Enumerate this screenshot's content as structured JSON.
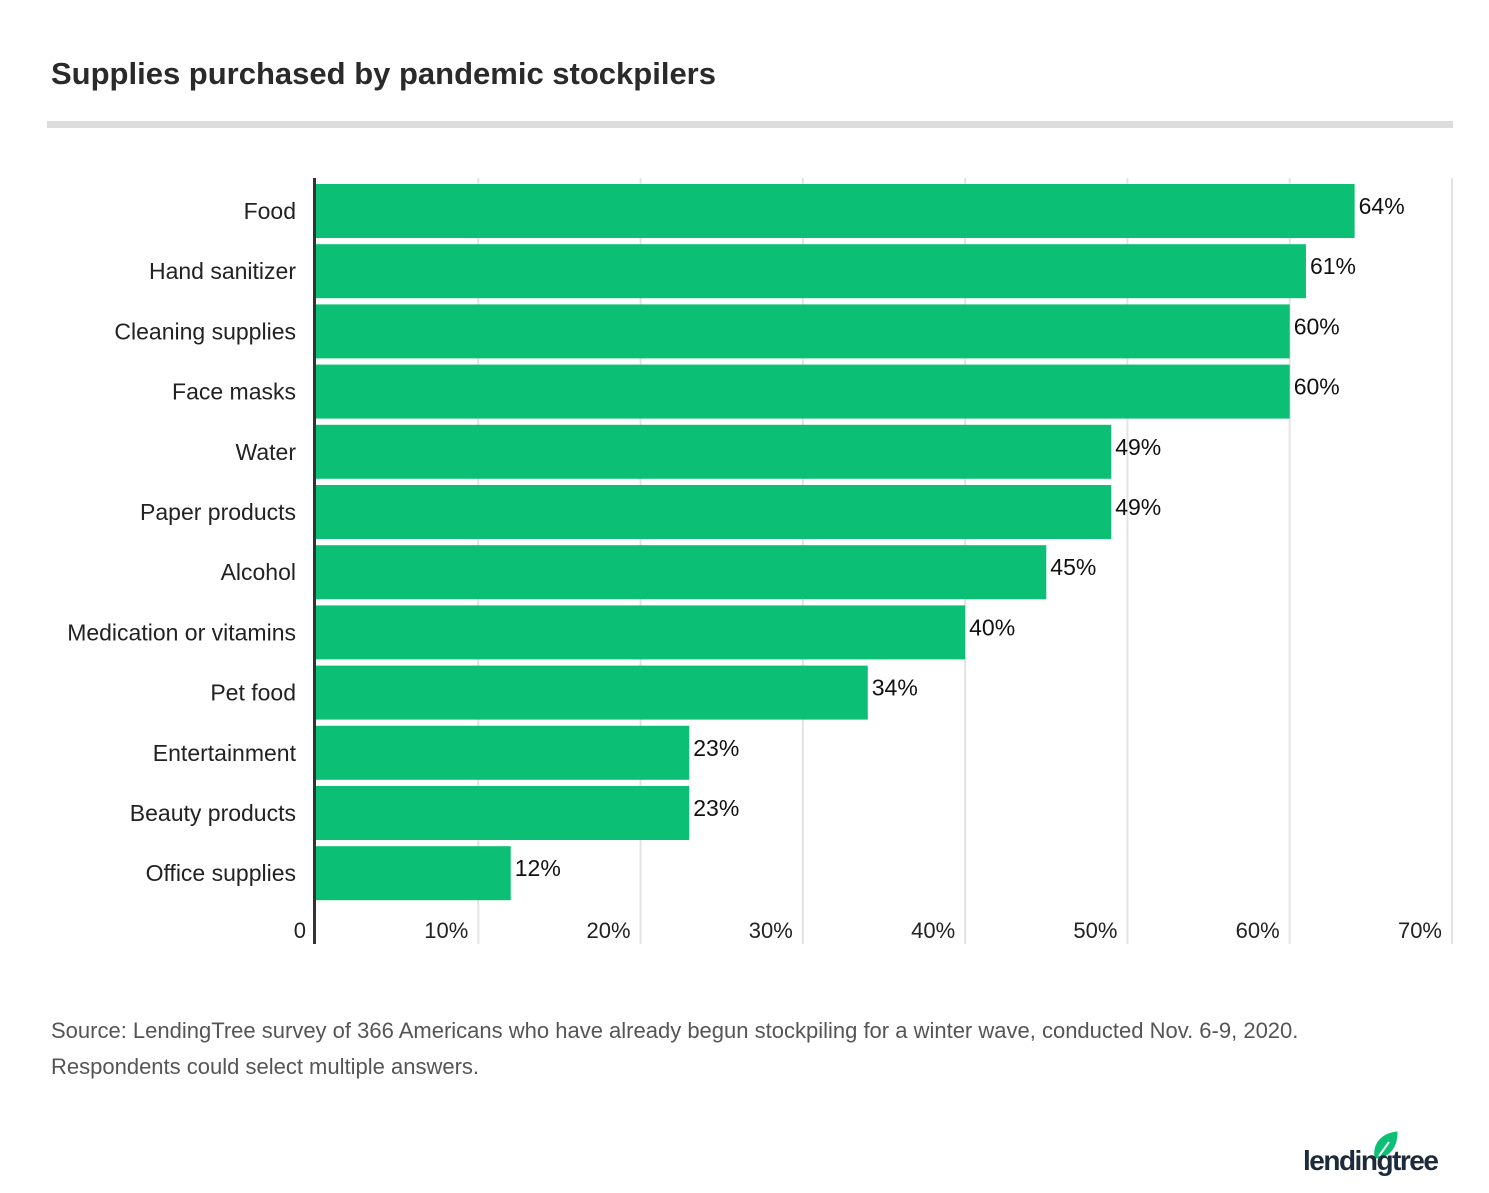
{
  "title": "Supplies purchased by pandemic stockpilers",
  "source_lines": [
    "Source: LendingTree survey of 366 Americans who have already begun stockpiling for a winter wave, conducted Nov. 6-9, 2020.",
    "Respondents could select multiple answers."
  ],
  "logo_text": "lendingtree",
  "colors": {
    "bar": "#0bbf74",
    "axis": "#333333",
    "grid": "#e3e3e3",
    "logo_leaf": "#0bbf74",
    "logo_text": "#1c2a39"
  },
  "chart_data": {
    "type": "bar",
    "orientation": "horizontal",
    "title": "Supplies purchased by pandemic stockpilers",
    "categories": [
      "Food",
      "Hand sanitizer",
      "Cleaning supplies",
      "Face masks",
      "Water",
      "Paper products",
      "Alcohol",
      "Medication or vitamins",
      "Pet food",
      "Entertainment",
      "Beauty products",
      "Office supplies"
    ],
    "values": [
      64,
      61,
      60,
      60,
      49,
      49,
      45,
      40,
      34,
      23,
      23,
      12
    ],
    "data_labels": [
      "64%",
      "61%",
      "60%",
      "60%",
      "49%",
      "49%",
      "45%",
      "40%",
      "34%",
      "23%",
      "23%",
      "12%"
    ],
    "xlim": [
      0,
      70
    ],
    "xticks": [
      0,
      10,
      20,
      30,
      40,
      50,
      60,
      70
    ],
    "xtick_labels": [
      "0",
      "10%",
      "20%",
      "30%",
      "40%",
      "50%",
      "60%",
      "70%"
    ],
    "grid": true,
    "xlabel": "",
    "ylabel": ""
  }
}
